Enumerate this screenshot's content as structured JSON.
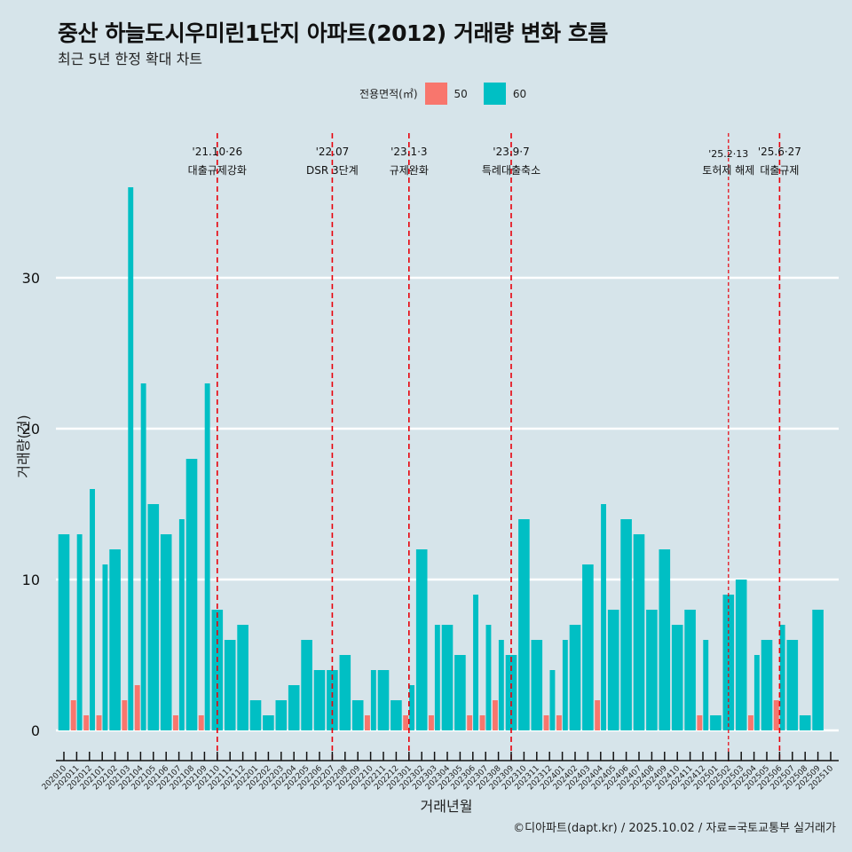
{
  "chart_data": {
    "type": "bar",
    "title": "중산 하늘도시우미린1단지 아파트(2012) 거래량 변화 흐름",
    "subtitle": "최근 5년 한정 확대 차트",
    "xlabel": "거래년월",
    "ylabel": "거래량(건)",
    "ylim": [
      0,
      38
    ],
    "yticks": [
      0,
      10,
      20,
      30
    ],
    "grid": true,
    "legend": {
      "title": "전용면적(㎡)",
      "position": "top",
      "entries": [
        {
          "name": "50",
          "color": "#f8766d"
        },
        {
          "name": "60",
          "color": "#00bfc4"
        }
      ]
    },
    "categories": [
      "202010",
      "202011",
      "202012",
      "202101",
      "202102",
      "202103",
      "202104",
      "202105",
      "202106",
      "202107",
      "202108",
      "202109",
      "202110",
      "202111",
      "202112",
      "202201",
      "202202",
      "202203",
      "202204",
      "202205",
      "202206",
      "202207",
      "202208",
      "202209",
      "202210",
      "202211",
      "202212",
      "202301",
      "202302",
      "202303",
      "202304",
      "202305",
      "202306",
      "202307",
      "202308",
      "202309",
      "202310",
      "202311",
      "202312",
      "202401",
      "202402",
      "202403",
      "202404",
      "202405",
      "202406",
      "202407",
      "202408",
      "202409",
      "202410",
      "202411",
      "202412",
      "202501",
      "202502",
      "202503",
      "202504",
      "202505",
      "202506",
      "202507",
      "202508",
      "202509",
      "202510"
    ],
    "series": [
      {
        "name": "50",
        "color": "#f8766d",
        "values": [
          null,
          2,
          1,
          1,
          null,
          2,
          3,
          null,
          null,
          1,
          null,
          1,
          null,
          null,
          null,
          null,
          null,
          null,
          null,
          null,
          null,
          null,
          null,
          null,
          1,
          null,
          null,
          1,
          null,
          1,
          null,
          null,
          1,
          1,
          2,
          null,
          null,
          null,
          1,
          1,
          null,
          null,
          2,
          null,
          null,
          null,
          null,
          null,
          null,
          null,
          1,
          null,
          null,
          null,
          1,
          null,
          2,
          null,
          null,
          null,
          null
        ]
      },
      {
        "name": "60",
        "color": "#00bfc4",
        "values": [
          13,
          13,
          16,
          11,
          12,
          36,
          23,
          15,
          13,
          14,
          18,
          23,
          8,
          6,
          7,
          2,
          1,
          2,
          3,
          6,
          4,
          4,
          5,
          2,
          4,
          4,
          2,
          3,
          12,
          7,
          7,
          5,
          9,
          7,
          6,
          5,
          14,
          6,
          4,
          6,
          7,
          11,
          15,
          8,
          14,
          13,
          8,
          12,
          7,
          8,
          6,
          1,
          9,
          10,
          5,
          6,
          7,
          6,
          1,
          8,
          null
        ]
      }
    ],
    "annotations": [
      {
        "month": "202110",
        "date": "'21.10·26",
        "label": "대출규제강화",
        "style": "dashed"
      },
      {
        "month": "202207",
        "date": "'22.07",
        "label": "DSR 3단계",
        "style": "dashed"
      },
      {
        "month": "202301",
        "date": "'23.1·3",
        "label": "규제완화",
        "style": "dashed"
      },
      {
        "month": "202309",
        "date": "'23.9·7",
        "label": "특례대출축소",
        "style": "dashed"
      },
      {
        "month": "202502",
        "date": "'25.2·13",
        "label": "토허제 해제",
        "style": "dotted"
      },
      {
        "month": "202506",
        "date": "'25.6·27",
        "label": "대출규제",
        "style": "dashed"
      }
    ]
  },
  "caption": "©디아파트(dapt.kr) / 2025.10.02 / 자료=국토교통부 실거래가"
}
